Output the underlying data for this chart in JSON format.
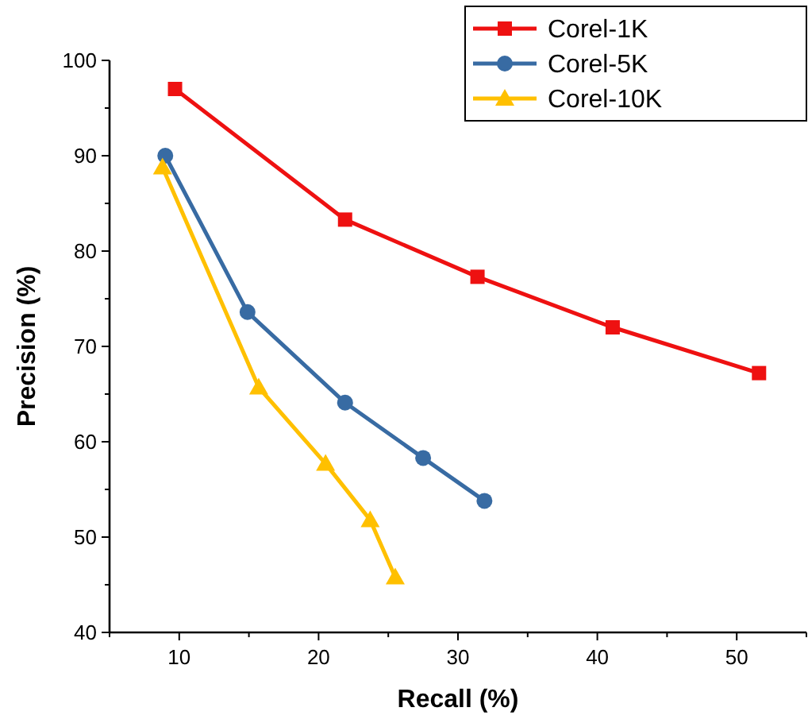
{
  "chart_data": {
    "type": "line",
    "xlabel": "Recall (%)",
    "ylabel": "Precision (%)",
    "xlim": [
      5,
      55
    ],
    "ylim": [
      40,
      100
    ],
    "xticks": [
      {
        "value": 5,
        "label": null
      },
      10,
      {
        "value": 15,
        "label": null
      },
      20,
      {
        "value": 25,
        "label": null
      },
      30,
      {
        "value": 35,
        "label": null
      },
      40,
      {
        "value": 45,
        "label": null
      },
      50,
      {
        "value": 55,
        "label": null
      }
    ],
    "yticks": [
      40,
      {
        "value": 45,
        "label": null
      },
      50,
      {
        "value": 55,
        "label": null
      },
      60,
      {
        "value": 65,
        "label": null
      },
      70,
      {
        "value": 75,
        "label": null
      },
      80,
      {
        "value": 85,
        "label": null
      },
      90,
      {
        "value": 95,
        "label": null
      },
      100
    ],
    "series": [
      {
        "name": "Corel-1K",
        "color": "#ee1111",
        "marker": "square",
        "x": [
          9.7,
          21.9,
          31.4,
          41.1,
          51.6
        ],
        "values": [
          97.0,
          83.3,
          77.3,
          72.0,
          67.2
        ]
      },
      {
        "name": "Corel-5K",
        "color": "#386ba3",
        "marker": "circle",
        "x": [
          9.0,
          14.9,
          21.9,
          27.5,
          31.9
        ],
        "values": [
          90.0,
          73.6,
          64.1,
          58.3,
          53.8
        ]
      },
      {
        "name": "Corel-10K",
        "color": "#ffc000",
        "marker": "triangle",
        "x": [
          8.8,
          15.7,
          20.5,
          23.7,
          25.5
        ],
        "values": [
          88.8,
          65.7,
          57.7,
          51.8,
          45.8
        ]
      }
    ],
    "legend": "top right",
    "grid": false,
    "line_style": "solid"
  }
}
